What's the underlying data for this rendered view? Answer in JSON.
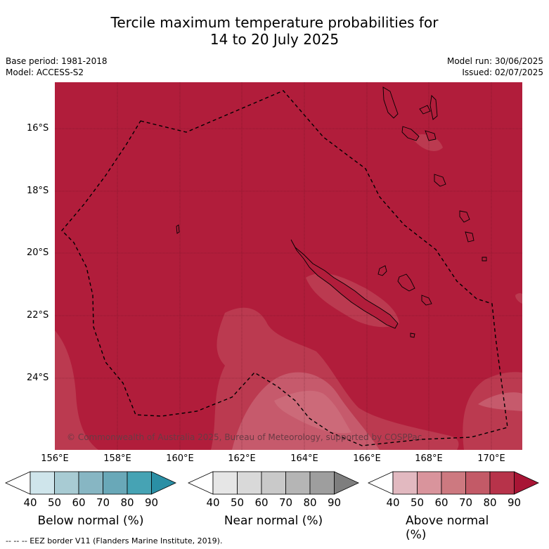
{
  "title_line1": "Tercile maximum temperature probabilities for",
  "title_line2": "14 to 20 July 2025",
  "meta_left": [
    "Base period: 1981-2018",
    "Model: ACCESS-S2"
  ],
  "meta_right": [
    "Model run: 30/06/2025",
    "Issued: 02/07/2025"
  ],
  "lat_labels": [
    "16°S",
    "18°S",
    "20°S",
    "22°S",
    "24°S"
  ],
  "lon_labels": [
    "156°E",
    "158°E",
    "160°E",
    "162°E",
    "164°E",
    "166°E",
    "168°E",
    "170°E"
  ],
  "copyright": "© Commonwealth of Australia 2025, Bureau of Meteorology, supported by COSPPac",
  "colorbars": [
    {
      "title": "Below normal (%)",
      "ticks": [
        "40",
        "50",
        "60",
        "70",
        "80",
        "90"
      ],
      "colors": [
        "#ffffff",
        "#cfe5eb",
        "#a8cbd3",
        "#87b6c3",
        "#69a8b8",
        "#46a3b4",
        "#2a8fa5"
      ]
    },
    {
      "title": "Near normal (%)",
      "ticks": [
        "40",
        "50",
        "60",
        "70",
        "80",
        "90"
      ],
      "colors": [
        "#ffffff",
        "#e6e6e6",
        "#d9d9d9",
        "#c9c9c9",
        "#b5b5b5",
        "#9e9e9e",
        "#7e7e7e"
      ]
    },
    {
      "title": "Above normal (%)",
      "ticks": [
        "40",
        "50",
        "60",
        "70",
        "80",
        "90"
      ],
      "colors": [
        "#ffffff",
        "#e2b9c0",
        "#d9949c",
        "#cd7980",
        "#c35a67",
        "#b7334a",
        "#a81535"
      ]
    }
  ],
  "footer": "--  --  -- EEZ border V11 (Flanders Marine Institute, 2019).",
  "map_colors": {
    "dominant": "#b11d3b",
    "light": "#c24a5d",
    "lighter": "#cd6b78"
  }
}
